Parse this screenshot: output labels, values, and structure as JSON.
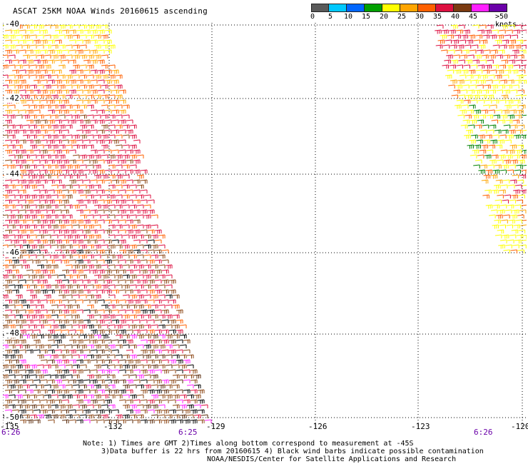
{
  "title": "ASCAT 25KM NOAA Winds 20160615 ascending",
  "legend": {
    "unit_label": ">50 knots",
    "ticks": [
      "0",
      "5",
      "10",
      "15",
      "20",
      "25",
      "30",
      "35",
      "40",
      "45"
    ],
    "colors": [
      "#5a5a5a",
      "#00c8ff",
      "#0066ff",
      "#00a000",
      "#ffff00",
      "#ffa500",
      "#ff6000",
      "#dd1040",
      "#7a3a10",
      "#ff20ff",
      "#6a00a8"
    ]
  },
  "axes": {
    "lat_labels": [
      "-40",
      "-42",
      "-44",
      "-46",
      "-48",
      "-50"
    ],
    "lon_labels": [
      "-135",
      "-132",
      "-129",
      "-126",
      "-123",
      "-120"
    ]
  },
  "times": {
    "left_start": "6:26",
    "left_end": "6:25",
    "right": "6:26"
  },
  "notes": {
    "line1": "Note: 1) Times are GMT 2)Times along bottom correspond to measurement at -45S",
    "line2": "3)Data buffer is 22 hrs from 20160615 4) Black wind barbs indicate possible contamination",
    "line3": "NOAA/NESDIS/Center for Satellite Applications and Research"
  }
}
